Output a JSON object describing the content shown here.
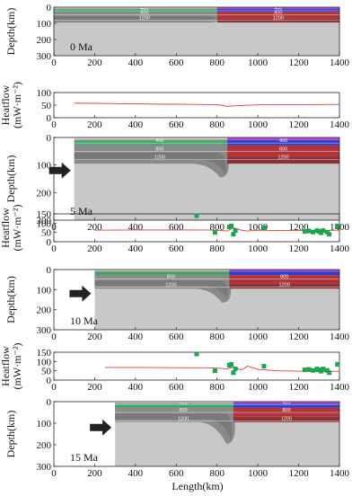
{
  "figure": {
    "x_axis_label": "Length(km)",
    "depth_axis_label": "Depth(km)",
    "heatflow_axis_label_line1": "Heatflow",
    "heatflow_axis_label_line2": "(mW·m⁻²)",
    "isotherm_labels": [
      "400",
      "800",
      "1200"
    ]
  },
  "chart_data": [
    {
      "type": "heatmap",
      "panel": "model-0Ma",
      "age_label": "0 Ma",
      "xlabel": "",
      "ylabel": "Depth(km)",
      "xlim": [
        0,
        1400
      ],
      "ylim": [
        300,
        0
      ],
      "x_ticks": [
        0,
        200,
        400,
        600,
        800,
        1000,
        1200,
        1400
      ],
      "y_ticks": [
        0,
        100,
        200,
        300
      ],
      "push_position_km": null,
      "isotherms": [
        {
          "label": "400",
          "x": [
            0,
            800
          ],
          "y": [
            22,
            22
          ]
        },
        {
          "label": "800",
          "x": [
            0,
            800
          ],
          "y": [
            48,
            48
          ]
        },
        {
          "label": "1200",
          "x": [
            0,
            800
          ],
          "y": [
            80,
            80
          ]
        }
      ]
    },
    {
      "type": "line",
      "panel": "heatflow-0Ma",
      "xlabel": "",
      "ylabel": "Heatflow (mW·m⁻²)",
      "xlim": [
        0,
        1400
      ],
      "ylim": [
        0,
        100
      ],
      "x_ticks": [
        0,
        200,
        400,
        600,
        800,
        1000,
        1200,
        1400
      ],
      "y_ticks": [
        0,
        50,
        100
      ],
      "model_curve": {
        "x": [
          100,
          300,
          500,
          700,
          780,
          820,
          850,
          900,
          1000,
          1200,
          1400
        ],
        "y": [
          58,
          56,
          54,
          53,
          52,
          50,
          45,
          48,
          51,
          52,
          53
        ]
      },
      "observed": null
    },
    {
      "type": "heatmap",
      "panel": "model-5Ma",
      "age_label": "5 Ma",
      "xlabel": "",
      "ylabel": "Depth(km)",
      "xlim": [
        0,
        1400
      ],
      "ylim": [
        300,
        0
      ],
      "x_ticks": [
        0,
        200,
        400,
        600,
        800,
        1000,
        1200,
        1400
      ],
      "y_ticks": [
        0,
        100,
        200,
        300
      ],
      "push_position_km": 100,
      "isotherms": [
        {
          "label": "400",
          "x": [
            100,
            870
          ],
          "y": [
            20,
            20
          ]
        },
        {
          "label": "800",
          "x": [
            100,
            870
          ],
          "y": [
            50,
            50
          ]
        },
        {
          "label": "1200",
          "x": [
            100,
            870
          ],
          "y": [
            80,
            80
          ]
        }
      ]
    },
    {
      "type": "scatter",
      "panel": "heatflow-5Ma",
      "xlabel": "",
      "ylabel": "Heatflow (mW·m⁻²)",
      "xlim": [
        0,
        1400
      ],
      "ylim": [
        0,
        150
      ],
      "x_ticks": [
        0,
        200,
        400,
        600,
        800,
        1000,
        1200,
        1400
      ],
      "y_ticks": [
        0,
        50,
        100,
        150
      ],
      "model_curve": {
        "x": [
          200,
          400,
          600,
          750,
          820,
          850,
          880,
          920,
          950,
          1000,
          1100,
          1200,
          1300,
          1400
        ],
        "y": [
          62,
          63,
          63,
          63,
          60,
          58,
          75,
          62,
          58,
          62,
          60,
          60,
          60,
          62
        ]
      },
      "observed": {
        "x": [
          700,
          790,
          860,
          870,
          880,
          890,
          1030,
          1230,
          1250,
          1270,
          1290,
          1300,
          1310,
          1320,
          1340,
          1350,
          1390
        ],
        "y": [
          140,
          50,
          80,
          85,
          40,
          60,
          75,
          55,
          58,
          52,
          60,
          55,
          48,
          60,
          52,
          40,
          85
        ]
      }
    },
    {
      "type": "heatmap",
      "panel": "model-10Ma",
      "age_label": "10 Ma",
      "xlabel": "",
      "ylabel": "Depth(km)",
      "xlim": [
        0,
        1400
      ],
      "ylim": [
        300,
        0
      ],
      "x_ticks": [
        0,
        200,
        400,
        600,
        800,
        1000,
        1200,
        1400
      ],
      "y_ticks": [
        0,
        100,
        200,
        300
      ],
      "push_position_km": 200,
      "isotherms": [
        {
          "label": "800",
          "x": [
            200,
            860
          ],
          "y": [
            48,
            48
          ]
        },
        {
          "label": "1200",
          "x": [
            200,
            860
          ],
          "y": [
            88,
            88
          ]
        }
      ]
    },
    {
      "type": "scatter",
      "panel": "heatflow-10Ma",
      "xlabel": "",
      "ylabel": "Heatflow (mW·m⁻²)",
      "xlim": [
        0,
        1400
      ],
      "ylim": [
        0,
        150
      ],
      "x_ticks": [
        0,
        200,
        400,
        600,
        800,
        1000,
        1200,
        1400
      ],
      "y_ticks": [
        0,
        50,
        100,
        150
      ],
      "model_curve": {
        "x": [
          250,
          400,
          600,
          750,
          820,
          850,
          880,
          920,
          950,
          1000,
          1100,
          1200,
          1300,
          1400
        ],
        "y": [
          68,
          68,
          67,
          66,
          63,
          60,
          70,
          55,
          75,
          58,
          50,
          48,
          45,
          48
        ]
      },
      "observed": {
        "x": [
          700,
          790,
          860,
          870,
          880,
          890,
          1030,
          1230,
          1250,
          1270,
          1290,
          1300,
          1310,
          1320,
          1340,
          1350,
          1390
        ],
        "y": [
          140,
          50,
          80,
          85,
          40,
          60,
          75,
          55,
          58,
          52,
          60,
          55,
          48,
          60,
          52,
          40,
          85
        ]
      }
    },
    {
      "type": "heatmap",
      "panel": "model-15Ma",
      "age_label": "15 Ma",
      "xlabel": "Length(km)",
      "ylabel": "Depth(km)",
      "xlim": [
        0,
        1400
      ],
      "ylim": [
        300,
        0
      ],
      "x_ticks": [
        0,
        200,
        400,
        600,
        800,
        1000,
        1200,
        1400
      ],
      "y_ticks": [
        0,
        100,
        200,
        300
      ],
      "push_position_km": 300,
      "isotherms": [
        {
          "label": "400",
          "x": [
            300,
            1000
          ],
          "y": [
            15,
            15
          ]
        },
        {
          "label": "800",
          "x": [
            300,
            1000
          ],
          "y": [
            50,
            50
          ]
        },
        {
          "label": "1200",
          "x": [
            300,
            1000
          ],
          "y": [
            90,
            90
          ]
        }
      ]
    }
  ],
  "colors": {
    "mantle": "#c8c8c8",
    "lithosphere": "#8a8a8a",
    "lithosphere_dark": "#6e6e6e",
    "green_layer": "#18b85a",
    "right_purple": "#b94ad6",
    "right_blue": "#2a3fcf",
    "right_red": "#b0343a",
    "right_darkred": "#8c3236",
    "top_beige": "#e9d9c5",
    "curve": "#e03a3a",
    "observed": "#1aa64e"
  }
}
